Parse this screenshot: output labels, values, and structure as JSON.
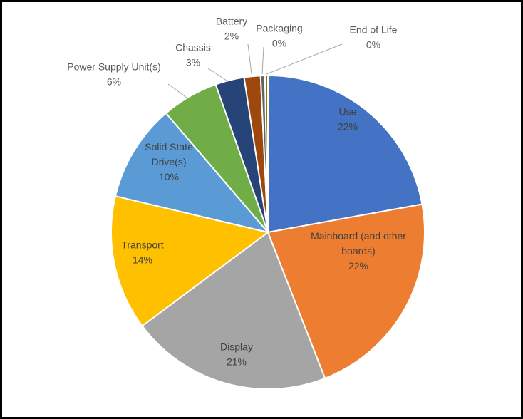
{
  "chart_data": {
    "type": "pie",
    "title": "",
    "colors": [
      "#4472C4",
      "#ED7D31",
      "#A5A5A5",
      "#FFC000",
      "#5B9BD5",
      "#70AD47",
      "#264478",
      "#9E480E",
      "#636363",
      "#997300"
    ],
    "label_color_inside": "#404040",
    "label_color_outside": "#595959",
    "slices": [
      {
        "label": [
          "Use"
        ],
        "pct_text": "22%",
        "value": 22.3
      },
      {
        "label": [
          "Mainboard (and other",
          "boards)"
        ],
        "pct_text": "22%",
        "value": 22.1
      },
      {
        "label": [
          "Display"
        ],
        "pct_text": "21%",
        "value": 20.9
      },
      {
        "label": [
          "Transport"
        ],
        "pct_text": "14%",
        "value": 14.0
      },
      {
        "label": [
          "Solid State",
          "Drive(s)"
        ],
        "pct_text": "10%",
        "value": 10.1
      },
      {
        "label": [
          "Power Supply Unit(s)"
        ],
        "pct_text": "6%",
        "value": 5.9
      },
      {
        "label": [
          "Chassis"
        ],
        "pct_text": "3%",
        "value": 3.0
      },
      {
        "label": [
          "Battery"
        ],
        "pct_text": "2%",
        "value": 1.7
      },
      {
        "label": [
          "Packaging"
        ],
        "pct_text": "0%",
        "value": 0.45
      },
      {
        "label": [
          "End of Life"
        ],
        "pct_text": "0%",
        "value": 0.3
      }
    ]
  }
}
